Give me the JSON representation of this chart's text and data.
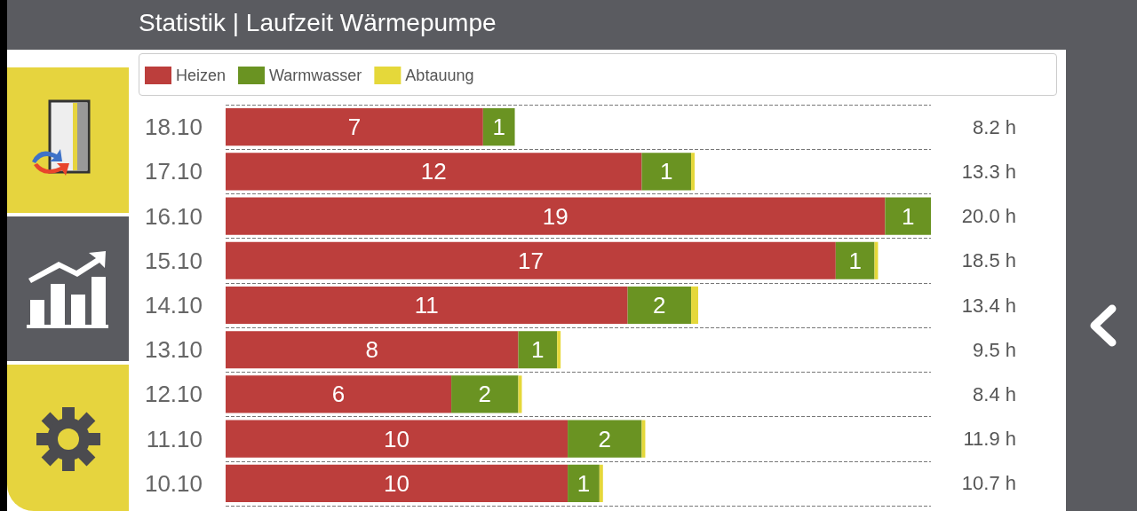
{
  "chart_data": {
    "type": "bar",
    "orientation": "horizontal",
    "stacked": true,
    "title": "Statistik | Laufzeit Wärmepumpe",
    "categories": [
      "18.10",
      "17.10",
      "16.10",
      "15.10",
      "14.10",
      "13.10",
      "12.10",
      "11.10",
      "10.10"
    ],
    "series": [
      {
        "name": "Heizen",
        "color": "#bc3e3c",
        "values": [
          7.3,
          11.8,
          18.7,
          17.3,
          11.4,
          8.3,
          6.4,
          9.7,
          9.7
        ],
        "value_labels": [
          "7",
          "12",
          "19",
          "17",
          "11",
          "8",
          "6",
          "10",
          "10"
        ]
      },
      {
        "name": "Warmwasser",
        "color": "#6a9322",
        "values": [
          0.9,
          1.4,
          1.3,
          1.1,
          1.8,
          1.1,
          1.9,
          2.1,
          0.9
        ],
        "value_labels": [
          "1",
          "1",
          "1",
          "1",
          "2",
          "1",
          "2",
          "2",
          "1"
        ]
      },
      {
        "name": "Abtauung",
        "color": "#e5d83a",
        "values": [
          0,
          0.1,
          0,
          0.1,
          0.2,
          0.1,
          0.1,
          0.1,
          0.1
        ]
      }
    ],
    "annotations": [
      "8.2 h",
      "13.3 h",
      "20.0 h",
      "18.5 h",
      "13.4 h",
      "9.5 h",
      "8.4 h",
      "11.9 h",
      "10.7 h"
    ],
    "legend": "top left",
    "grid": "y"
  }
}
